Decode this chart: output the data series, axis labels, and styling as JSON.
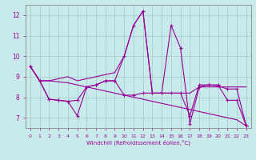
{
  "background_color": "#c8eaea",
  "line_color": "#990099",
  "grid_color": "#a0c8c8",
  "xlabel": "Windchill (Refroidissement éolien,°C)",
  "xlim": [
    -0.5,
    23.5
  ],
  "ylim": [
    6.5,
    12.5
  ],
  "yticks": [
    7,
    8,
    9,
    10,
    11,
    12
  ],
  "xticks": [
    0,
    1,
    2,
    3,
    4,
    5,
    6,
    7,
    8,
    9,
    10,
    11,
    12,
    13,
    14,
    15,
    16,
    17,
    18,
    19,
    20,
    21,
    22,
    23
  ],
  "line_rise_x": [
    0,
    1,
    2,
    3,
    4,
    5,
    6,
    7,
    8,
    9,
    10,
    11,
    12,
    13,
    14,
    15,
    16,
    17,
    18,
    19,
    20,
    21,
    22,
    23
  ],
  "line_rise_y": [
    9.5,
    8.8,
    8.8,
    8.9,
    9.0,
    8.8,
    8.9,
    9.0,
    9.1,
    9.2,
    10.0,
    11.5,
    12.2,
    8.2,
    8.2,
    8.2,
    8.2,
    8.2,
    8.5,
    8.5,
    8.5,
    8.5,
    8.5,
    8.5
  ],
  "line_fall_x": [
    0,
    1,
    2,
    3,
    4,
    5,
    6,
    7,
    8,
    9,
    10,
    11,
    12,
    13,
    14,
    15,
    16,
    17,
    18,
    19,
    20,
    21,
    22,
    23
  ],
  "line_fall_y": [
    9.5,
    8.8,
    8.8,
    8.75,
    8.7,
    8.6,
    8.5,
    8.4,
    8.3,
    8.2,
    8.1,
    8.0,
    7.9,
    7.8,
    7.7,
    7.6,
    7.5,
    7.4,
    7.3,
    7.2,
    7.1,
    7.0,
    6.9,
    6.6
  ],
  "line_spike_x": [
    0,
    1,
    2,
    3,
    4,
    5,
    6,
    7,
    8,
    9,
    10,
    11,
    12,
    13,
    14,
    15,
    16,
    17,
    18,
    19,
    20,
    21,
    22,
    23
  ],
  "line_spike_y": [
    9.5,
    8.8,
    7.9,
    7.85,
    7.8,
    7.1,
    8.5,
    8.6,
    8.8,
    8.8,
    10.0,
    11.5,
    12.2,
    8.2,
    8.2,
    11.5,
    10.4,
    6.7,
    8.5,
    8.6,
    8.6,
    7.85,
    7.85,
    6.6
  ],
  "line_flat_x": [
    0,
    1,
    2,
    3,
    4,
    5,
    6,
    7,
    8,
    9,
    10,
    11,
    12,
    13,
    14,
    15,
    16,
    17,
    18,
    19,
    20,
    21,
    22,
    23
  ],
  "line_flat_y": [
    9.5,
    8.8,
    7.9,
    7.85,
    7.8,
    7.85,
    8.5,
    8.6,
    8.8,
    8.8,
    8.1,
    8.1,
    8.2,
    8.2,
    8.2,
    8.2,
    8.2,
    7.1,
    8.6,
    8.6,
    8.55,
    8.4,
    8.4,
    6.6
  ],
  "linewidth": 0.8,
  "markersize": 3.5
}
